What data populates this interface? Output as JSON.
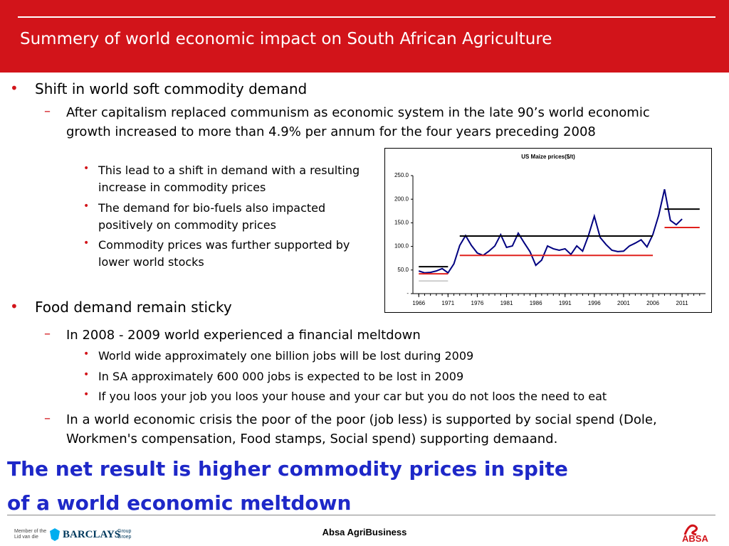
{
  "header": {
    "title": "Summery of world economic impact on South African Agriculture"
  },
  "bullets": [
    {
      "text": "Shift in world soft commodity demand",
      "subs": [
        {
          "text": "After capitalism replaced communism as economic system in the late 90’s world economic growth increased to more than 4.9% per annum for the four years preceding 2008",
          "points": [
            "This lead to a shift in demand with a resulting increase in commodity prices",
            "The demand for bio-fuels  also impacted positively on commodity prices",
            "Commodity prices was further supported by lower world stocks"
          ]
        }
      ]
    },
    {
      "text": "Food demand remain sticky",
      "subs": [
        {
          "text": "In 2008 - 2009 world experienced a financial meltdown",
          "points": [
            "World wide approximately one billion jobs will be lost during 2009",
            "In SA approximately  600 000 jobs is expected to be lost in 2009",
            "If you loos your job you loos your house and your car but you do not loos the need to eat"
          ]
        },
        {
          "text": "In a world economic crisis the poor of the poor (job less) is supported by social spend (Dole, Workmen's compensation, Food stamps, Social spend) supporting demaand."
        }
      ]
    }
  ],
  "conclusion": [
    "The net result is higher commodity prices in spite",
    "of a world economic meltdown"
  ],
  "footer": {
    "center": "Absa AgriBusiness",
    "member": [
      "Member of the",
      "Lid van die"
    ],
    "brand": "BARCLAYS",
    "group": [
      "Group",
      "Groep"
    ],
    "logo": "ABSA"
  },
  "chart_data": {
    "type": "line",
    "title": "US Maize prices($/t)",
    "x": [
      1966,
      1967,
      1968,
      1969,
      1970,
      1971,
      1972,
      1973,
      1974,
      1975,
      1976,
      1977,
      1978,
      1979,
      1980,
      1981,
      1982,
      1983,
      1984,
      1985,
      1986,
      1987,
      1988,
      1989,
      1990,
      1991,
      1992,
      1993,
      1994,
      1995,
      1996,
      1997,
      1998,
      1999,
      2000,
      2001,
      2002,
      2003,
      2004,
      2005,
      2006,
      2007,
      2008,
      2009,
      2010,
      2011,
      2012,
      2013,
      2014
    ],
    "series": [
      {
        "color": "#000080",
        "values": [
          48,
          44,
          45,
          48,
          53,
          44,
          63,
          102,
          123,
          102,
          86,
          81,
          90,
          101,
          125,
          98,
          101,
          128,
          108,
          89,
          60,
          71,
          101,
          95,
          92,
          95,
          83,
          101,
          90,
          123,
          164,
          119,
          104,
          92,
          89,
          90,
          101,
          107,
          114,
          99,
          125,
          166,
          221,
          155,
          146,
          158,
          null,
          null,
          null
        ]
      },
      {
        "color": "#000000",
        "values": [
          57,
          57,
          57,
          57,
          57,
          57,
          null,
          122,
          122,
          122,
          122,
          122,
          122,
          122,
          122,
          122,
          122,
          122,
          122,
          122,
          122,
          122,
          122,
          122,
          122,
          122,
          122,
          122,
          122,
          122,
          122,
          122,
          122,
          122,
          122,
          122,
          122,
          122,
          122,
          122,
          122,
          null,
          179,
          179,
          179,
          179,
          179,
          179,
          179
        ]
      },
      {
        "color": "#e0201c",
        "values": [
          42,
          42,
          42,
          42,
          42,
          42,
          null,
          81,
          81,
          81,
          81,
          81,
          81,
          81,
          81,
          81,
          81,
          81,
          81,
          81,
          81,
          81,
          81,
          81,
          81,
          81,
          81,
          81,
          81,
          81,
          81,
          81,
          81,
          81,
          81,
          81,
          81,
          81,
          81,
          81,
          81,
          null,
          140,
          140,
          140,
          140,
          140,
          140,
          140
        ]
      },
      {
        "color": "#a0a0a0",
        "values": [
          27,
          27,
          27,
          27,
          27,
          27,
          null,
          null,
          null,
          null,
          null,
          null,
          null,
          null,
          null,
          null,
          null,
          null,
          null,
          null,
          null,
          null,
          null,
          null,
          null,
          null,
          null,
          null,
          null,
          null,
          null,
          null,
          null,
          null,
          null,
          null,
          null,
          null,
          null,
          null,
          null,
          null,
          null,
          null,
          null,
          null,
          null,
          null,
          null
        ]
      }
    ],
    "xlim": [
      1965,
      2015
    ],
    "xticks": [
      1966,
      1971,
      1976,
      1981,
      1986,
      1991,
      1996,
      2001,
      2006,
      2011
    ],
    "ylim": [
      0,
      250
    ],
    "yticks": [
      {
        "value": 0,
        "label": "-"
      },
      {
        "value": 50,
        "label": "50.0"
      },
      {
        "value": 100,
        "label": "100.0"
      },
      {
        "value": 150,
        "label": "150.0"
      },
      {
        "value": 200,
        "label": "200.0"
      },
      {
        "value": 250,
        "label": "250.0"
      }
    ]
  }
}
